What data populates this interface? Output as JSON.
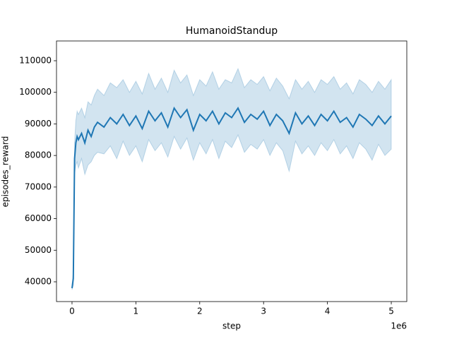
{
  "chart_data": {
    "type": "line",
    "title": "HumanoidStandup",
    "x_label": "step",
    "y_label": "episodes_reward",
    "x_offset_label": "1e6",
    "color": "#1f77b4",
    "band_color": "#1f77b4",
    "x": [
      0,
      20000,
      40000,
      60000,
      80000,
      100000,
      150000,
      200000,
      250000,
      300000,
      350000,
      400000,
      500000,
      600000,
      700000,
      800000,
      900000,
      1000000,
      1100000,
      1200000,
      1300000,
      1400000,
      1500000,
      1600000,
      1700000,
      1800000,
      1900000,
      2000000,
      2100000,
      2200000,
      2300000,
      2400000,
      2500000,
      2600000,
      2700000,
      2800000,
      2900000,
      3000000,
      3100000,
      3200000,
      3300000,
      3400000,
      3500000,
      3600000,
      3700000,
      3800000,
      3900000,
      4000000,
      4100000,
      4200000,
      4300000,
      4400000,
      4500000,
      4600000,
      4700000,
      4800000,
      4900000,
      5000000
    ],
    "values": [
      38000,
      41000,
      79000,
      84000,
      86000,
      85000,
      87000,
      84000,
      88000,
      86000,
      89000,
      90500,
      89000,
      92000,
      90000,
      93000,
      89500,
      92500,
      88500,
      94000,
      91000,
      93500,
      89000,
      95000,
      92000,
      94500,
      88000,
      93000,
      91000,
      94000,
      90000,
      93500,
      92000,
      95000,
      90500,
      93000,
      91500,
      94000,
      89500,
      93000,
      91000,
      87000,
      93500,
      90000,
      92500,
      89500,
      93000,
      91000,
      94000,
      90500,
      92000,
      89000,
      93000,
      91500,
      89500,
      92500,
      90000,
      92500
    ],
    "band_lower": [
      37500,
      39000,
      74000,
      77000,
      78000,
      76000,
      79000,
      74000,
      77000,
      78000,
      80000,
      81000,
      80500,
      83000,
      79000,
      84500,
      80000,
      83000,
      78000,
      85000,
      81500,
      84000,
      79500,
      86000,
      82000,
      85500,
      78500,
      84000,
      80500,
      85000,
      79000,
      84500,
      82500,
      86500,
      81000,
      83500,
      82000,
      85000,
      80000,
      84000,
      81500,
      75000,
      84500,
      80500,
      83000,
      80000,
      84000,
      81500,
      85000,
      80500,
      83000,
      79000,
      84000,
      82000,
      78500,
      83500,
      80000,
      82000
    ],
    "band_upper": [
      39000,
      43000,
      84000,
      91000,
      94000,
      93000,
      95000,
      92000,
      97000,
      96000,
      99000,
      101000,
      99000,
      103000,
      101500,
      104000,
      100000,
      103500,
      99500,
      106000,
      101000,
      104500,
      100000,
      107000,
      103000,
      105500,
      99000,
      104000,
      102000,
      106500,
      101000,
      104000,
      103000,
      107500,
      101500,
      104000,
      102500,
      105000,
      100500,
      104500,
      102000,
      98000,
      104000,
      101000,
      103500,
      100000,
      104000,
      102500,
      105000,
      101000,
      103000,
      99500,
      104000,
      102500,
      100000,
      103500,
      101000,
      104000
    ],
    "xlim": [
      -243000,
      5243000
    ],
    "ylim": [
      33740,
      116260
    ],
    "xticks": [
      {
        "value": 0,
        "label": "0"
      },
      {
        "value": 1000000,
        "label": "1"
      },
      {
        "value": 2000000,
        "label": "2"
      },
      {
        "value": 3000000,
        "label": "3"
      },
      {
        "value": 4000000,
        "label": "4"
      },
      {
        "value": 5000000,
        "label": "5"
      }
    ],
    "yticks": [
      40000,
      50000,
      60000,
      70000,
      80000,
      90000,
      100000,
      110000
    ]
  }
}
